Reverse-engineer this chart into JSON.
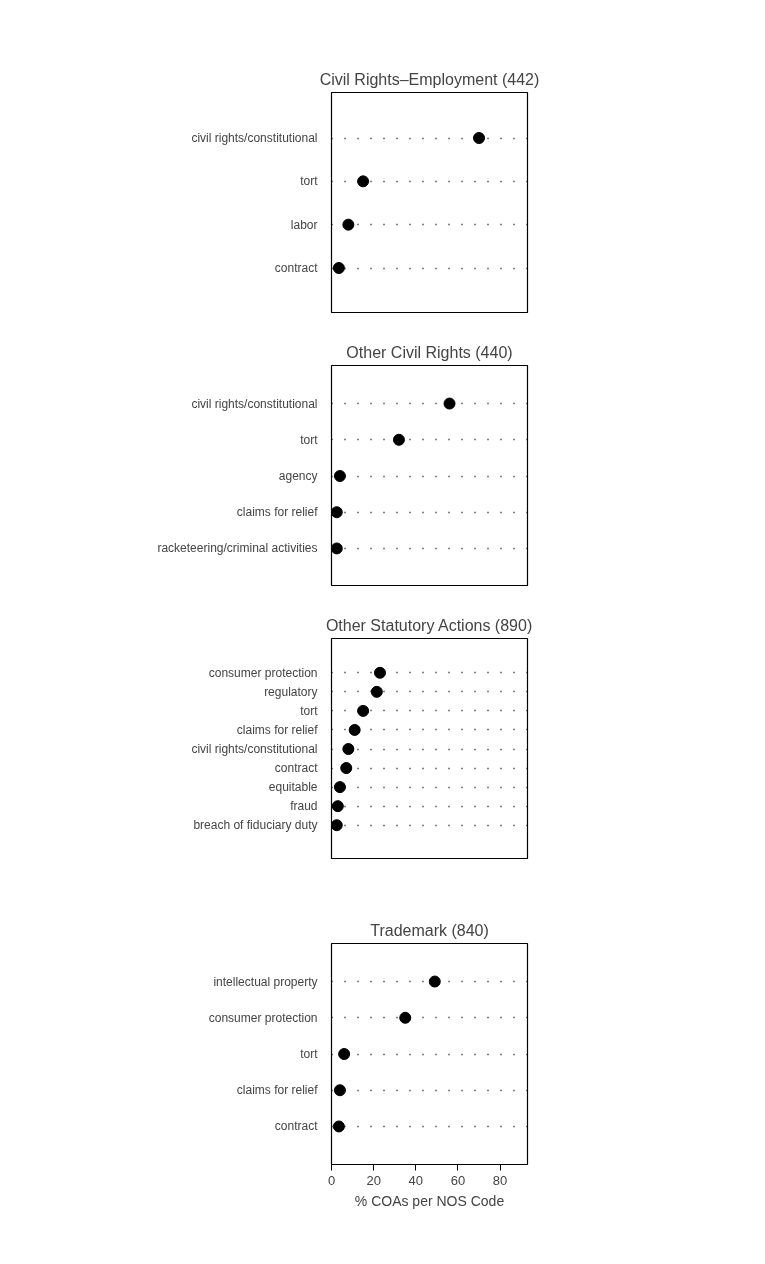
{
  "chart_data": [
    {
      "type": "scatter",
      "title": "Civil Rights–Employment (442)",
      "categories": [
        "civil rights/constitutional",
        "tort",
        "labor",
        "contract"
      ],
      "values": [
        70,
        15,
        8,
        3.5
      ],
      "orientation": "horizontal",
      "color": "#000000",
      "marker": "circle",
      "xlim": [
        0,
        93
      ],
      "xticks": [
        0,
        20,
        40,
        60,
        80
      ],
      "tick_labels": "y",
      "grid": "y"
    },
    {
      "type": "scatter",
      "title": "Other Civil Rights (440)",
      "categories": [
        "civil rights/constitutional",
        "tort",
        "agency",
        "claims for relief",
        "racketeering/criminal activities"
      ],
      "values": [
        56,
        32,
        4,
        2.5,
        2.5
      ],
      "orientation": "horizontal",
      "color": "#000000",
      "marker": "circle",
      "xlim": [
        0,
        93
      ],
      "xticks": [
        0,
        20,
        40,
        60,
        80
      ],
      "tick_labels": "y",
      "grid": "y"
    },
    {
      "type": "scatter",
      "title": "Other Statutory Actions (890)",
      "categories": [
        "consumer protection",
        "regulatory",
        "tort",
        "claims for relief",
        "civil rights/constitutional",
        "contract",
        "equitable",
        "fraud",
        "breach of fiduciary duty"
      ],
      "values": [
        23,
        21.5,
        15,
        11,
        8,
        7,
        4,
        3,
        2.5
      ],
      "orientation": "horizontal",
      "color": "#000000",
      "marker": "circle",
      "xlim": [
        0,
        93
      ],
      "xticks": [
        0,
        20,
        40,
        60,
        80
      ],
      "tick_labels": "y",
      "grid": "y"
    },
    {
      "type": "scatter",
      "title": "Trademark (840)",
      "xlabel": "% COAs per NOS Code",
      "categories": [
        "intellectual property",
        "consumer protection",
        "tort",
        "claims for relief",
        "contract"
      ],
      "values": [
        49,
        35,
        6,
        4,
        3.5
      ],
      "orientation": "horizontal",
      "color": "#000000",
      "marker": "circle",
      "xlim": [
        0,
        93
      ],
      "xticks": [
        0,
        20,
        40,
        60,
        80
      ],
      "grid": "y"
    }
  ]
}
